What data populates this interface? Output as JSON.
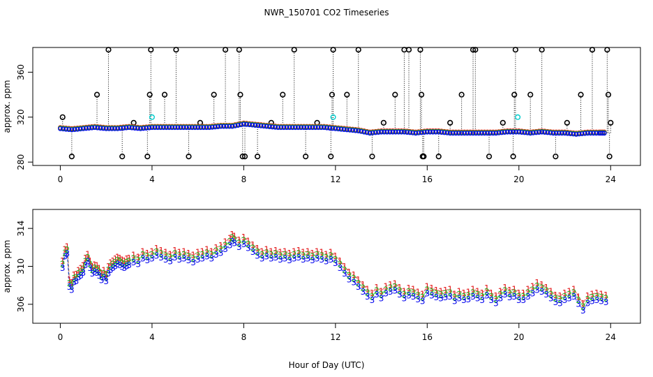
{
  "figure": {
    "title": "NWR_150701  CO2 Timeseries",
    "xlabel": "Hour of Day (UTC)"
  },
  "chart_data": [
    {
      "type": "scatter",
      "panel": "top",
      "title": "NWR_150701  CO2 Timeseries",
      "xlabel": "",
      "ylabel": "approx. ppm",
      "xlim": [
        -1.2,
        25.3
      ],
      "ylim": [
        277,
        382
      ],
      "xticks": [
        0,
        4,
        8,
        12,
        16,
        20,
        24
      ],
      "yticks": [
        280,
        320,
        360
      ],
      "grid": false,
      "main_trace": {
        "x": [
          0,
          0.5,
          1,
          1.5,
          2,
          2.5,
          3,
          3.5,
          4,
          4.5,
          5,
          5.5,
          6,
          6.5,
          7,
          7.5,
          8,
          8.5,
          9,
          9.5,
          10,
          10.5,
          11,
          11.5,
          12,
          12.5,
          13,
          13.5,
          14,
          14.5,
          15,
          15.5,
          16,
          16.5,
          17,
          17.5,
          18,
          18.5,
          19,
          19.5,
          20,
          20.5,
          21,
          21.5,
          22,
          22.5,
          23,
          23.5,
          23.8
        ],
        "y": [
          310,
          309,
          310,
          311,
          310,
          310,
          311,
          310,
          311,
          311,
          311,
          311,
          311,
          311,
          312,
          312,
          314,
          313,
          312,
          311,
          311,
          311,
          311,
          311,
          310,
          309,
          308,
          306,
          307,
          307,
          307,
          306,
          307,
          307,
          306,
          306,
          306,
          306,
          306,
          307,
          307,
          306,
          307,
          306,
          306,
          305,
          306,
          306,
          306
        ]
      },
      "series": [
        {
          "name": "1",
          "color": "#e41a1c"
        },
        {
          "name": "2",
          "color": "#22bb22"
        },
        {
          "name": "3",
          "color": "#0000ee"
        }
      ],
      "spikes": {
        "color": "#000000",
        "x": [
          0.1,
          0.5,
          1.6,
          2.1,
          2.7,
          3.2,
          3.8,
          3.9,
          3.95,
          4.55,
          5.05,
          5.6,
          6.1,
          6.7,
          7.2,
          7.8,
          7.85,
          7.95,
          8.05,
          8.6,
          9.2,
          9.7,
          10.2,
          10.7,
          11.2,
          11.8,
          11.85,
          11.9,
          12.5,
          13.0,
          13.6,
          14.1,
          14.6,
          15.0,
          15.2,
          15.7,
          15.75,
          15.8,
          15.85,
          16.5,
          17.0,
          17.5,
          18.0,
          18.1,
          18.7,
          19.3,
          19.75,
          19.8,
          19.85,
          20.5,
          21.0,
          21.6,
          22.1,
          22.7,
          23.2,
          23.85,
          23.9,
          23.95,
          24.0
        ],
        "y": [
          320,
          285,
          340,
          380,
          285,
          315,
          285,
          340,
          380,
          340,
          380,
          285,
          315,
          340,
          380,
          380,
          340,
          285,
          285,
          285,
          315,
          340,
          380,
          285,
          315,
          285,
          340,
          380,
          340,
          380,
          285,
          315,
          340,
          380,
          380,
          380,
          340,
          285,
          285,
          285,
          315,
          340,
          380,
          380,
          285,
          315,
          285,
          340,
          380,
          340,
          380,
          285,
          315,
          340,
          380,
          380,
          340,
          285,
          315
        ]
      },
      "flags_cyan": {
        "color": "#00cccc",
        "x": [
          4.0,
          11.9,
          19.95
        ],
        "y": [
          320,
          320,
          320
        ]
      }
    },
    {
      "type": "scatter",
      "panel": "bottom",
      "xlabel": "Hour of Day (UTC)",
      "ylabel": "approx. ppm",
      "xlim": [
        -1.2,
        25.3
      ],
      "ylim": [
        304,
        316
      ],
      "xticks": [
        0,
        4,
        8,
        12,
        16,
        20,
        24
      ],
      "yticks": [
        306,
        310,
        314
      ],
      "grid": false,
      "markers_are_labels": true,
      "series": [
        {
          "name": "1",
          "color": "#e41a1c",
          "offset": 0.6
        },
        {
          "name": "2",
          "color": "#22bb22",
          "offset": 0.25
        },
        {
          "name": "3",
          "color": "#0000ee",
          "offset": -0.15
        }
      ],
      "x": [
        0.1,
        0.2,
        0.3,
        0.4,
        0.5,
        0.6,
        0.7,
        0.8,
        0.9,
        1.0,
        1.1,
        1.2,
        1.3,
        1.4,
        1.5,
        1.6,
        1.7,
        1.8,
        1.9,
        2.0,
        2.1,
        2.2,
        2.3,
        2.4,
        2.5,
        2.6,
        2.7,
        2.8,
        2.9,
        3.0,
        3.2,
        3.4,
        3.6,
        3.8,
        4.0,
        4.2,
        4.4,
        4.6,
        4.8,
        5.0,
        5.2,
        5.4,
        5.6,
        5.8,
        6.0,
        6.2,
        6.4,
        6.6,
        6.8,
        7.0,
        7.2,
        7.4,
        7.5,
        7.6,
        7.8,
        8.0,
        8.2,
        8.4,
        8.6,
        8.8,
        9.0,
        9.2,
        9.4,
        9.6,
        9.8,
        10.0,
        10.2,
        10.4,
        10.6,
        10.8,
        11.0,
        11.2,
        11.4,
        11.6,
        11.8,
        12.0,
        12.2,
        12.4,
        12.6,
        12.8,
        13.0,
        13.2,
        13.4,
        13.6,
        13.8,
        14.0,
        14.2,
        14.4,
        14.6,
        14.8,
        15.0,
        15.2,
        15.4,
        15.6,
        15.8,
        16.0,
        16.2,
        16.4,
        16.6,
        16.8,
        17.0,
        17.2,
        17.4,
        17.6,
        17.8,
        18.0,
        18.2,
        18.4,
        18.6,
        18.8,
        19.0,
        19.2,
        19.4,
        19.6,
        19.8,
        20.0,
        20.2,
        20.4,
        20.6,
        20.8,
        21.0,
        21.2,
        21.4,
        21.6,
        21.8,
        22.0,
        22.2,
        22.4,
        22.6,
        22.8,
        23.0,
        23.2,
        23.4,
        23.6,
        23.8
      ],
      "y": [
        310.0,
        311.2,
        311.5,
        308.0,
        307.7,
        308.5,
        308.6,
        309.0,
        309.2,
        309.5,
        310.3,
        310.7,
        310.0,
        309.4,
        309.6,
        309.5,
        309.2,
        308.7,
        309.0,
        308.6,
        309.4,
        309.8,
        310.0,
        310.2,
        310.4,
        310.3,
        310.1,
        310.0,
        310.2,
        310.3,
        310.6,
        310.4,
        311.0,
        310.8,
        311.0,
        311.3,
        311.1,
        310.9,
        310.7,
        311.1,
        310.9,
        311.0,
        310.8,
        310.6,
        310.9,
        311.0,
        311.2,
        311.0,
        311.4,
        311.6,
        312.0,
        312.4,
        312.8,
        312.6,
        312.2,
        312.5,
        312.1,
        311.7,
        311.3,
        311.0,
        311.2,
        311.0,
        311.1,
        310.9,
        311.0,
        310.8,
        311.0,
        311.1,
        310.9,
        311.0,
        310.8,
        311.0,
        310.9,
        310.7,
        310.9,
        310.5,
        310.0,
        309.4,
        308.8,
        308.5,
        308.0,
        307.5,
        307.0,
        306.6,
        307.2,
        306.8,
        307.3,
        307.5,
        307.6,
        307.2,
        306.8,
        307.1,
        307.0,
        306.7,
        306.5,
        307.3,
        307.1,
        306.9,
        306.8,
        306.9,
        307.0,
        306.5,
        306.8,
        306.6,
        306.7,
        307.0,
        306.8,
        306.6,
        307.1,
        306.6,
        306.3,
        306.8,
        307.2,
        306.9,
        307.0,
        306.6,
        306.6,
        307.0,
        307.3,
        307.7,
        307.5,
        307.2,
        306.8,
        306.4,
        306.3,
        306.6,
        306.8,
        307.0,
        306.2,
        305.5,
        306.3,
        306.5,
        306.6,
        306.5,
        306.4
      ]
    }
  ]
}
